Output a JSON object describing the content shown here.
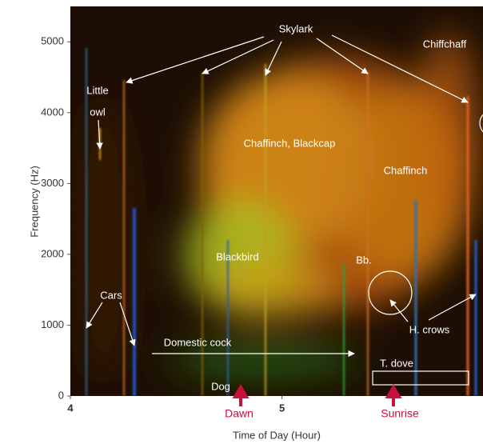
{
  "chart_data": {
    "type": "spectrogram",
    "xlabel": "Time of Day (Hour)",
    "ylabel": "Frequency (Hz)",
    "xlim": [
      4,
      5.95
    ],
    "xticks": [
      4,
      5
    ],
    "ylim": [
      0,
      5500
    ],
    "yticks": [
      0,
      1000,
      2000,
      3000,
      4000,
      5000
    ],
    "annotations": [
      "Skylark",
      "Chiffchaff",
      "Little",
      "owl",
      "Chaffinch, Blackcap",
      "Chaffinch",
      "Blackbird",
      "Bb.",
      "Cars",
      "H. crows",
      "Domestic cock",
      "T. dove",
      "Dog",
      "Dawn",
      "Sunrise"
    ]
  }
}
